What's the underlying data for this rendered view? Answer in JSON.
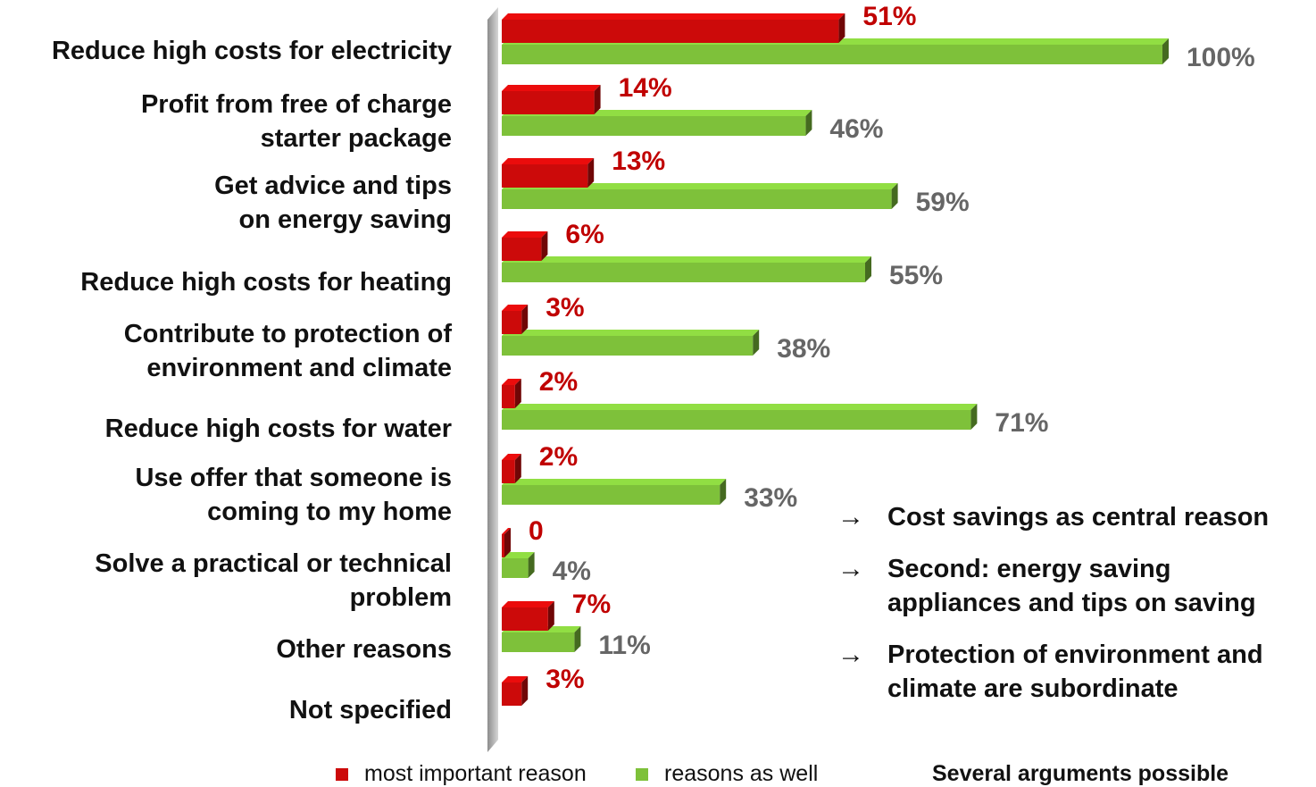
{
  "chart_data": {
    "type": "bar",
    "orientation": "horizontal",
    "categories": [
      [
        "Reduce high costs for electricity"
      ],
      [
        "Profit from free of charge",
        "starter package"
      ],
      [
        "Get advice  and tips",
        "on energy saving"
      ],
      [
        "Reduce high costs for heating"
      ],
      [
        "Contribute to protection of",
        "environment and climate"
      ],
      [
        "Reduce high costs for water"
      ],
      [
        "Use offer that someone is",
        "coming to my home"
      ],
      [
        "Solve a practical or technical",
        "problem"
      ],
      [
        "Other reasons"
      ],
      [
        "Not specified"
      ]
    ],
    "series": [
      {
        "name": "most important reason",
        "color": "#cc0a0a",
        "values": [
          51,
          14,
          13,
          6,
          3,
          2,
          2,
          0,
          7,
          3
        ],
        "labels": [
          "51%",
          "14%",
          "13%",
          "6%",
          "3%",
          "2%",
          "2%",
          "0",
          "7%",
          "3%"
        ]
      },
      {
        "name": "reasons as well",
        "color": "#7ec13a",
        "values": [
          100,
          46,
          59,
          55,
          38,
          71,
          33,
          4,
          11,
          null
        ],
        "labels": [
          "100%",
          "46%",
          "59%",
          "55%",
          "38%",
          "71%",
          "33%",
          "4%",
          "11%",
          null
        ]
      }
    ],
    "xlim": [
      0,
      100
    ],
    "grid": false,
    "legend_position": "bottom"
  },
  "notes": [
    {
      "arrow": "→",
      "text": "Cost savings as central reason"
    },
    {
      "arrow": "→",
      "text": "Second: energy saving appliances and tips on saving"
    },
    {
      "arrow": "→",
      "text": "Protection of environment and climate are subordinate"
    }
  ],
  "footnote": "Several arguments possible"
}
